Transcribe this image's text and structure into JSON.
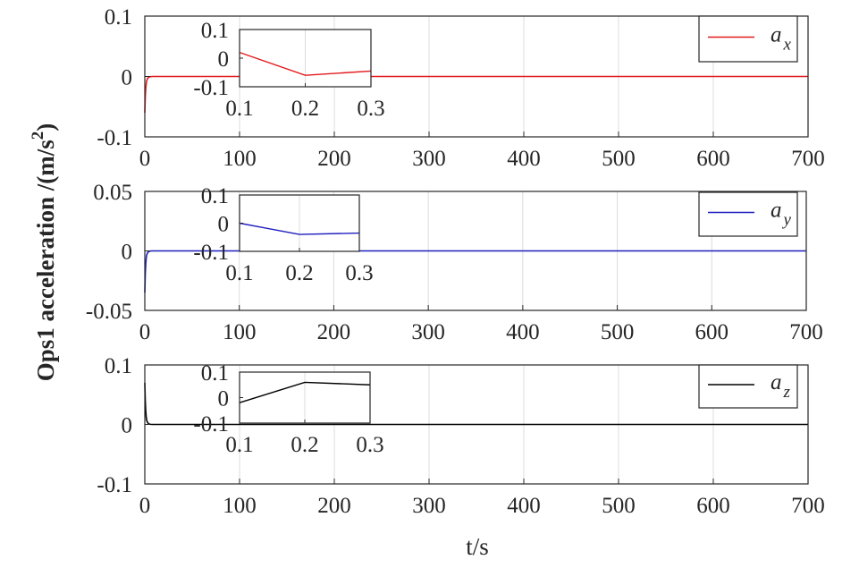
{
  "chart_data": {
    "type": "line",
    "ylabel": "Ops1 acceleration /(m/s²)",
    "ylabel_main": "Ops1 acceleration /(m/s",
    "ylabel_sup": "2",
    "ylabel_tail": ")",
    "xlabel": "t/s",
    "grid": true,
    "subplots": [
      {
        "legend": {
          "symbol": "a",
          "subscript": "x",
          "placement": "top-right"
        },
        "color": "#e41a1c",
        "xlim": [
          0,
          700
        ],
        "ylim": [
          -0.1,
          0.1
        ],
        "xticks": [
          0,
          100,
          200,
          300,
          400,
          500,
          600,
          700
        ],
        "xtick_labels": [
          "0",
          "100",
          "200",
          "300",
          "400",
          "500",
          "600",
          "700"
        ],
        "yticks": [
          -0.1,
          0,
          0.1
        ],
        "ytick_labels": [
          "-0.1",
          "0",
          "0.1"
        ],
        "series": [
          {
            "x": [
              0,
              0.5,
              1,
              1.5,
              2,
              3,
              4,
              5,
              6,
              8,
              10,
              20,
              700
            ],
            "y": [
              -0.06,
              -0.035,
              -0.02,
              -0.012,
              -0.007,
              -0.003,
              -0.0015,
              -0.0006,
              -0.0002,
              0,
              0,
              0,
              0
            ]
          }
        ],
        "inset": {
          "xlim": [
            0.1,
            0.3
          ],
          "ylim": [
            -0.1,
            0.1
          ],
          "xticks": [
            0.1,
            0.2,
            0.3
          ],
          "xtick_labels": [
            "0.1",
            "0.2",
            "0.3"
          ],
          "yticks": [
            -0.1,
            0,
            0.1
          ],
          "ytick_labels": [
            "-0.1",
            "0",
            "0.1"
          ],
          "x": [
            0.1,
            0.2,
            0.3
          ],
          "y": [
            0.02,
            -0.06,
            -0.045
          ]
        }
      },
      {
        "legend": {
          "symbol": "a",
          "subscript": "y",
          "placement": "top-right"
        },
        "color": "#1f1fbf",
        "xlim": [
          0,
          700
        ],
        "ylim": [
          -0.05,
          0.05
        ],
        "xticks": [
          0,
          100,
          200,
          300,
          400,
          500,
          600,
          700
        ],
        "xtick_labels": [
          "0",
          "100",
          "200",
          "300",
          "400",
          "500",
          "600",
          "700"
        ],
        "yticks": [
          -0.05,
          0,
          0.05
        ],
        "ytick_labels": [
          "-0.05",
          "0",
          "0.05"
        ],
        "series": [
          {
            "x": [
              0,
              0.5,
              1,
              1.5,
              2,
              3,
              4,
              5,
              6,
              8,
              10,
              20,
              700
            ],
            "y": [
              -0.035,
              -0.02,
              -0.011,
              -0.006,
              -0.0035,
              -0.0015,
              -0.0007,
              -0.0003,
              -0.0001,
              0,
              0,
              0,
              0
            ]
          }
        ],
        "inset": {
          "xlim": [
            0.1,
            0.3
          ],
          "ylim": [
            -0.1,
            0.1
          ],
          "xticks": [
            0.1,
            0.2,
            0.3
          ],
          "xtick_labels": [
            "0.1",
            "0.2",
            "0.3"
          ],
          "yticks": [
            -0.1,
            0,
            0.1
          ],
          "ytick_labels": [
            "-0.1",
            "0",
            "0.1"
          ],
          "x": [
            0.1,
            0.2,
            0.3
          ],
          "y": [
            0.0,
            -0.04,
            -0.035
          ]
        }
      },
      {
        "legend": {
          "symbol": "a",
          "subscript": "z",
          "placement": "top-right"
        },
        "color": "#000000",
        "xlim": [
          0,
          700
        ],
        "ylim": [
          -0.1,
          0.1
        ],
        "xticks": [
          0,
          100,
          200,
          300,
          400,
          500,
          600,
          700
        ],
        "xtick_labels": [
          "0",
          "100",
          "200",
          "300",
          "400",
          "500",
          "600",
          "700"
        ],
        "yticks": [
          -0.1,
          0,
          0.1
        ],
        "ytick_labels": [
          "-0.1",
          "0",
          "0.1"
        ],
        "series": [
          {
            "x": [
              0,
              0.5,
              1,
              1.5,
              2,
              3,
              4,
              5,
              6,
              8,
              10,
              20,
              700
            ],
            "y": [
              0.07,
              0.04,
              0.022,
              0.012,
              0.007,
              0.003,
              0.0012,
              0.0005,
              0.0002,
              0,
              0,
              0,
              0
            ]
          }
        ],
        "inset": {
          "xlim": [
            0.1,
            0.3
          ],
          "ylim": [
            -0.1,
            0.1
          ],
          "xticks": [
            0.1,
            0.2,
            0.3
          ],
          "xtick_labels": [
            "0.1",
            "0.2",
            "0.3"
          ],
          "yticks": [
            -0.1,
            0,
            0.1
          ],
          "ytick_labels": [
            "-0.1",
            "0",
            "0.1"
          ],
          "x": [
            0.1,
            0.2,
            0.3
          ],
          "y": [
            -0.02,
            0.06,
            0.05
          ]
        }
      }
    ]
  }
}
